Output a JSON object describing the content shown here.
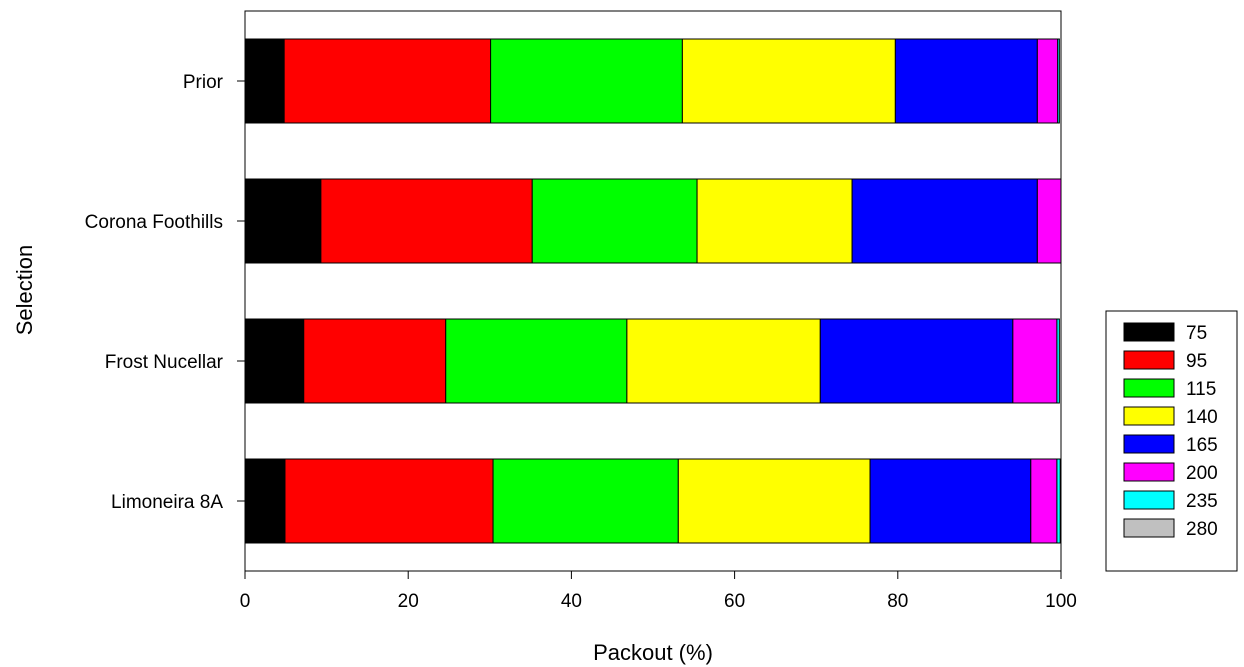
{
  "chart_data": {
    "type": "bar",
    "orientation": "horizontal",
    "stacked": true,
    "xlabel": "Packout (%)",
    "ylabel": "Selection",
    "xlim": [
      0,
      100
    ],
    "xticks": [
      0,
      20,
      40,
      60,
      80,
      100
    ],
    "grid": false,
    "legend_position": "right",
    "categories": [
      "Prior",
      "Corona Foothills",
      "Frost Nucellar",
      "Limoneira 8A"
    ],
    "series": [
      {
        "name": "75",
        "color": "#000000",
        "values": [
          4.8,
          9.3,
          7.2,
          4.9
        ]
      },
      {
        "name": "95",
        "color": "#ff0000",
        "values": [
          25.3,
          25.9,
          17.4,
          25.5
        ]
      },
      {
        "name": "115",
        "color": "#00ff00",
        "values": [
          23.5,
          20.2,
          22.2,
          22.7
        ]
      },
      {
        "name": "140",
        "color": "#ffff00",
        "values": [
          26.1,
          19.0,
          23.7,
          23.5
        ]
      },
      {
        "name": "165",
        "color": "#0000ff",
        "values": [
          17.4,
          22.7,
          23.6,
          19.7
        ]
      },
      {
        "name": "200",
        "color": "#ff00ff",
        "values": [
          2.5,
          2.9,
          5.4,
          3.2
        ]
      },
      {
        "name": "235",
        "color": "#00ffff",
        "values": [
          0.2,
          0.0,
          0.3,
          0.4
        ]
      },
      {
        "name": "280",
        "color": "#c0c0c0",
        "values": [
          0.0,
          0.0,
          0.0,
          0.0
        ]
      }
    ]
  }
}
